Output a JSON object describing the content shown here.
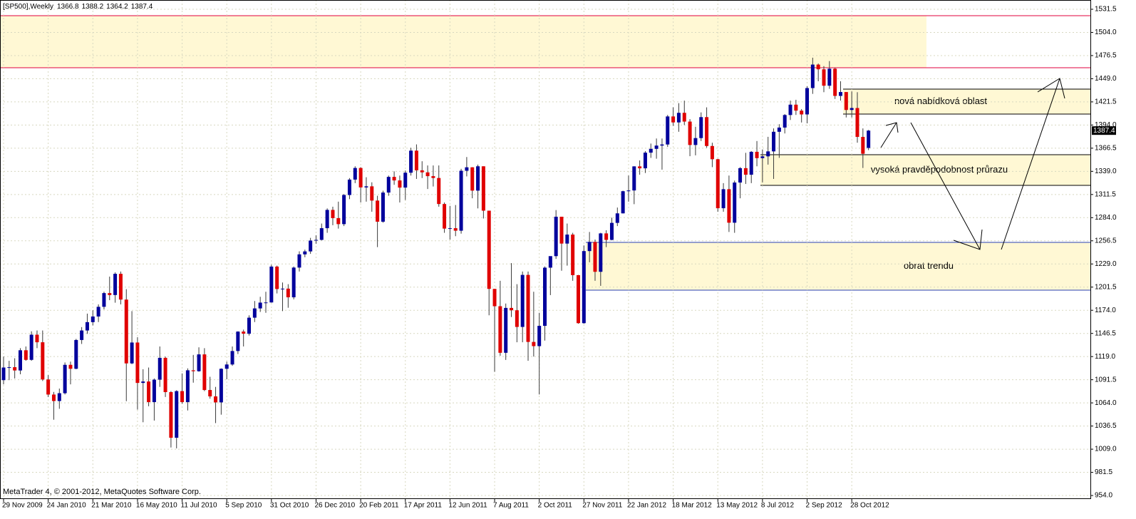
{
  "chart_data": {
    "type": "candlestick",
    "title": "[SP500],Weekly",
    "footer": "MetaTrader 4, © 2001-2012, MetaQuotes Software Corp.",
    "up_color": "#00009c",
    "down_color": "#e00000",
    "wick_color": "#3a3a3a",
    "grid": true,
    "categories": [
      "29 Nov 2009",
      null,
      null,
      null,
      null,
      null,
      null,
      null,
      "24 Jan 2010",
      null,
      null,
      null,
      null,
      null,
      null,
      null,
      "21 Mar 2010",
      null,
      null,
      null,
      null,
      null,
      null,
      null,
      "16 May 2010",
      null,
      null,
      null,
      null,
      null,
      null,
      null,
      "11 Jul 2010",
      null,
      null,
      null,
      null,
      null,
      null,
      null,
      "5 Sep 2010",
      null,
      null,
      null,
      null,
      null,
      null,
      null,
      "31 Oct 2010",
      null,
      null,
      null,
      null,
      null,
      null,
      null,
      "26 Dec 2010",
      null,
      null,
      null,
      null,
      null,
      null,
      null,
      "20 Feb 2011",
      null,
      null,
      null,
      null,
      null,
      null,
      null,
      "17 Apr 2011",
      null,
      null,
      null,
      null,
      null,
      null,
      null,
      "12 Jun 2011",
      null,
      null,
      null,
      null,
      null,
      null,
      null,
      "7 Aug 2011",
      null,
      null,
      null,
      null,
      null,
      null,
      null,
      "2 Oct 2011",
      null,
      null,
      null,
      null,
      null,
      null,
      null,
      "27 Nov 2011",
      null,
      null,
      null,
      null,
      null,
      null,
      null,
      "22 Jan 2012",
      null,
      null,
      null,
      null,
      null,
      null,
      null,
      "18 Mar 2012",
      null,
      null,
      null,
      null,
      null,
      null,
      null,
      "13 May 2012",
      null,
      null,
      null,
      null,
      null,
      null,
      null,
      "8 Jul 2012",
      null,
      null,
      null,
      null,
      null,
      null,
      null,
      "2 Sep 2012",
      null,
      null,
      null,
      null,
      null,
      null,
      null,
      "28 Oct 2012",
      null,
      null,
      null
    ],
    "open": [
      1091,
      1106,
      1106.4,
      1102.5,
      1126.5,
      1115.1,
      1145.0,
      1136.0,
      1091.8,
      1073.9,
      1066.2,
      1075.5,
      1109.2,
      1104.5,
      1138.7,
      1150.0,
      1159.9,
      1166.6,
      1178.1,
      1194.4,
      1192.1,
      1217.3,
      1186.7,
      1110.9,
      1135.7,
      1087.7,
      1089.4,
      1064.9,
      1091.6,
      1117.5,
      1076.8,
      1022.6,
      1078.0,
      1064.9,
      1102.7,
      1101.6,
      1121.6,
      1079.3,
      1071.7,
      1064.6,
      1104.5,
      1109.6,
      1125.6,
      1148.7,
      1146.2,
      1165.2,
      1176.2,
      1183.1,
      1183.3,
      1225.9,
      1199.2,
      1199.7,
      1189.4,
      1224.7,
      1240.4,
      1243.9,
      1256.8,
      1257.6,
      1271.5,
      1293.2,
      1283.4,
      1276.3,
      1310.9,
      1329.2,
      1343.0,
      1319.9,
      1321.2,
      1304.3,
      1279.2,
      1313.8,
      1332.4,
      1328.2,
      1319.7,
      1337.4,
      1363.6,
      1340.2,
      1337.8,
      1333.3,
      1331.1,
      1300.2,
      1271.0,
      1271.5,
      1268.5,
      1339.7,
      1343.8,
      1316.1,
      1345.0,
      1292.3,
      1199.4,
      1178.8,
      1123.5,
      1176.8,
      1174.0,
      1154.2,
      1216.0,
      1136.4,
      1131.4,
      1155.5,
      1224.6,
      1238.3,
      1285.1,
      1253.2,
      1263.9,
      1215.7,
      1158.7,
      1244.3,
      1255.2,
      1219.7,
      1265.3,
      1257.6,
      1277.8,
      1289.1,
      1315.4,
      1316.3,
      1344.9,
      1342.6,
      1361.2,
      1365.7,
      1369.6,
      1370.9,
      1404.2,
      1397.1,
      1408.5,
      1398.1,
      1370.3,
      1378.5,
      1403.4,
      1369.1,
      1353.4,
      1295.2,
      1317.8,
      1278.0,
      1325.7,
      1342.8,
      1335.0,
      1362.2,
      1354.7,
      1356.8,
      1362.7,
      1386.0,
      1391.0,
      1405.9,
      1418.2,
      1411.1,
      1406.6,
      1437.9,
      1465.8,
      1460.2,
      1440.7,
      1460.9,
      1428.6,
      1433.2,
      1411.9,
      1414.2,
      1379.9,
      1366.8
    ],
    "high": [
      1119,
      1114,
      1117,
      1129,
      1131,
      1149,
      1150,
      1150,
      1097,
      1077,
      1081,
      1112,
      1113,
      1140,
      1154,
      1170,
      1174,
      1181,
      1196,
      1214,
      1219,
      1220,
      1199,
      1173,
      1142,
      1104,
      1106,
      1093,
      1131,
      1119,
      1078,
      1079,
      1099,
      1105,
      1121,
      1130,
      1129,
      1095,
      1083,
      1105,
      1113,
      1131,
      1149,
      1151,
      1168,
      1185,
      1190,
      1196,
      1228,
      1227,
      1207,
      1205,
      1226,
      1244,
      1246,
      1260,
      1263,
      1277,
      1295,
      1297,
      1303,
      1312,
      1331,
      1345,
      1344,
      1332,
      1326,
      1310,
      1316,
      1334,
      1339,
      1334,
      1340,
      1367,
      1371,
      1351,
      1346,
      1346,
      1346,
      1302,
      1298,
      1299,
      1342,
      1356,
      1344,
      1347,
      1345,
      1292,
      1199,
      1209,
      1182,
      1230,
      1205,
      1220,
      1220,
      1196,
      1171,
      1226,
      1238,
      1293,
      1285,
      1277,
      1266,
      1216,
      1251,
      1267,
      1258,
      1266,
      1269,
      1284,
      1296,
      1316,
      1334,
      1345,
      1352,
      1363,
      1372,
      1378,
      1378,
      1406,
      1415,
      1420,
      1423,
      1401,
      1392,
      1409,
      1415,
      1373,
      1354,
      1325,
      1334,
      1328,
      1344,
      1361,
      1363,
      1375,
      1365,
      1380,
      1390,
      1395,
      1407,
      1423,
      1424,
      1413,
      1440,
      1474,
      1467,
      1464,
      1470,
      1462,
      1446,
      1433,
      1434,
      1433,
      1390,
      1388.2
    ],
    "low": [
      1086,
      1091,
      1093,
      1098,
      1114,
      1114,
      1129,
      1090,
      1071,
      1044,
      1057,
      1074,
      1086,
      1104,
      1134,
      1146,
      1156,
      1160,
      1175,
      1186,
      1183,
      1181,
      1066,
      1110,
      1056,
      1041,
      1060,
      1043,
      1083,
      1071,
      1011,
      1010,
      1063,
      1055,
      1088,
      1101,
      1078,
      1069,
      1040,
      1050,
      1092,
      1108,
      1122,
      1131,
      1144,
      1160,
      1172,
      1171,
      1183,
      1194,
      1173,
      1177,
      1187,
      1220,
      1237,
      1241,
      1253,
      1257,
      1266,
      1275,
      1271,
      1274,
      1306,
      1325,
      1302,
      1303,
      1291,
      1249,
      1278,
      1310,
      1323,
      1302,
      1305,
      1334,
      1330,
      1331,
      1318,
      1321,
      1297,
      1266,
      1258,
      1262,
      1265,
      1333,
      1307,
      1295,
      1283,
      1168,
      1101,
      1120,
      1115,
      1166,
      1136,
      1136,
      1114,
      1119,
      1074,
      1138,
      1192,
      1235,
      1221,
      1227,
      1209,
      1158,
      1158,
      1231,
      1209,
      1203,
      1249,
      1257,
      1274,
      1289,
      1303,
      1300,
      1335,
      1337,
      1355,
      1354,
      1341,
      1368,
      1393,
      1386,
      1394,
      1357,
      1358,
      1375,
      1367,
      1344,
      1291,
      1291,
      1267,
      1266,
      1307,
      1324,
      1325,
      1345,
      1326,
      1347,
      1330,
      1355,
      1384,
      1400,
      1406,
      1397,
      1396,
      1431,
      1446,
      1433,
      1437,
      1425,
      1423,
      1403,
      1403,
      1373,
      1343,
      1364.2
    ],
    "close": [
      1106,
      1106.4,
      1102.5,
      1126.5,
      1115.1,
      1145.0,
      1136.0,
      1091.8,
      1073.9,
      1066.2,
      1075.5,
      1109.2,
      1104.5,
      1138.7,
      1150.0,
      1159.9,
      1166.6,
      1178.1,
      1194.4,
      1192.1,
      1217.3,
      1186.7,
      1110.9,
      1135.7,
      1087.7,
      1089.4,
      1064.9,
      1091.6,
      1117.5,
      1076.8,
      1022.6,
      1078.0,
      1064.9,
      1102.7,
      1101.6,
      1121.6,
      1079.3,
      1071.7,
      1064.6,
      1104.5,
      1109.6,
      1125.6,
      1148.7,
      1146.2,
      1165.2,
      1176.2,
      1183.1,
      1183.3,
      1225.9,
      1199.2,
      1199.7,
      1189.4,
      1224.7,
      1240.4,
      1243.9,
      1256.8,
      1257.6,
      1271.5,
      1293.2,
      1283.4,
      1276.3,
      1310.9,
      1329.2,
      1343.0,
      1319.9,
      1321.2,
      1304.3,
      1279.2,
      1313.8,
      1332.4,
      1328.2,
      1319.7,
      1337.4,
      1363.6,
      1340.2,
      1337.8,
      1333.3,
      1331.1,
      1300.2,
      1271.0,
      1271.5,
      1268.5,
      1339.7,
      1343.8,
      1316.1,
      1345.0,
      1292.3,
      1199.4,
      1178.8,
      1123.5,
      1176.8,
      1174.0,
      1154.2,
      1216.0,
      1136.4,
      1131.4,
      1155.5,
      1224.6,
      1238.3,
      1285.1,
      1253.2,
      1263.9,
      1215.7,
      1158.7,
      1244.3,
      1255.2,
      1219.7,
      1265.3,
      1257.6,
      1277.8,
      1289.1,
      1315.4,
      1316.3,
      1344.9,
      1342.6,
      1361.2,
      1365.7,
      1369.6,
      1370.9,
      1404.2,
      1397.1,
      1408.5,
      1398.1,
      1370.3,
      1378.5,
      1403.4,
      1369.1,
      1353.4,
      1295.2,
      1317.8,
      1278.0,
      1325.7,
      1342.8,
      1335.0,
      1362.2,
      1354.7,
      1356.8,
      1362.7,
      1386.0,
      1391.0,
      1405.9,
      1418.2,
      1411.1,
      1406.6,
      1437.9,
      1465.8,
      1460.2,
      1440.7,
      1460.9,
      1428.6,
      1433.2,
      1411.9,
      1414.2,
      1379.9,
      1359.9,
      1387.4
    ],
    "ylim": [
      949.8,
      1542.5
    ],
    "yticks": [
      1531.5,
      {
        "value": 1504,
        "label": "1504.0"
      },
      1476.5,
      {
        "value": 1449,
        "label": "1449.0"
      },
      1421.5,
      {
        "value": 1394,
        "label": "1394.0"
      },
      1366.5,
      {
        "value": 1339,
        "label": "1339.0"
      },
      1311.5,
      {
        "value": 1284,
        "label": "1284.0"
      },
      1256.5,
      {
        "value": 1229,
        "label": "1229.0"
      },
      1201.5,
      {
        "value": 1174,
        "label": "1174.0"
      },
      1146.5,
      {
        "value": 1119,
        "label": "1119.0"
      },
      1091.5,
      {
        "value": 1064,
        "label": "1064.0"
      },
      1036.5,
      {
        "value": 1009,
        "label": "1009.0"
      },
      981.5,
      {
        "value": 954,
        "label": "954.0"
      }
    ],
    "zones": [
      {
        "high": 1523.9,
        "low": 1462.1,
        "color": "#e0003c"
      },
      {
        "high": 1436.7,
        "low": 1407.0,
        "color": "#000000",
        "label": "nová nabídková oblast"
      },
      {
        "high": 1358.8,
        "low": 1322.4,
        "color": "#000000",
        "label": "vysoká pravděpodobnost průrazu"
      },
      {
        "high": 1254.6,
        "low": 1197.9,
        "color": "#2840b0",
        "label": "obrat trendu"
      }
    ]
  }
}
